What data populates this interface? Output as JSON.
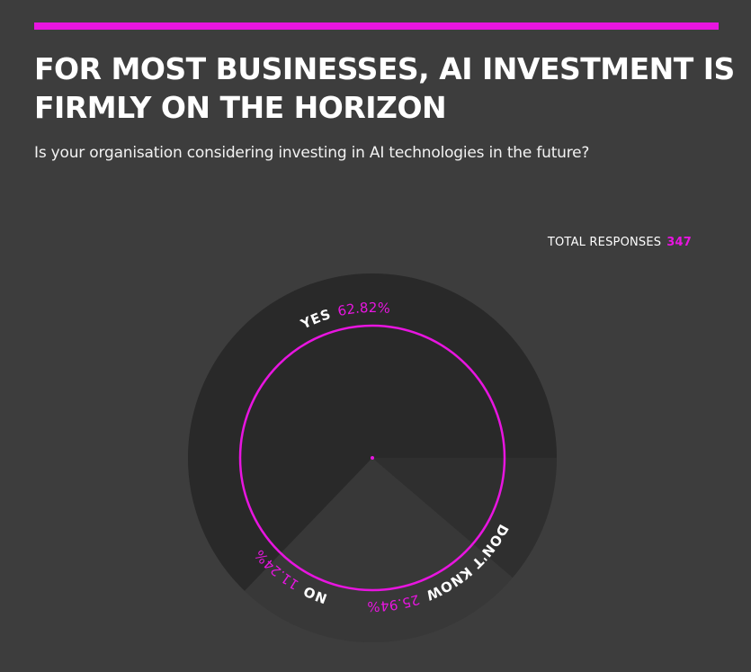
{
  "header": {
    "title": "FOR MOST BUSINESSES, AI INVESTMENT IS FIRMLY ON THE HORIZON",
    "subtitle": "Is your organisation considering investing in AI technologies in the future?"
  },
  "total": {
    "label": "TOTAL RESPONSES",
    "value": "347"
  },
  "colors": {
    "background": "#3d3d3d",
    "accent": "#e815e0",
    "ring": "#353535",
    "slice_yes": "#292929",
    "slice_dont_know": "#383838",
    "slice_no": "#2f2f2f"
  },
  "chart_data": {
    "type": "pie",
    "title": "FOR MOST BUSINESSES, AI INVESTMENT IS FIRMLY ON THE HORIZON",
    "slices": [
      {
        "label": "YES",
        "value": 62.82,
        "display": "62.82%"
      },
      {
        "label": "DON'T KNOW",
        "value": 25.94,
        "display": "25.94%"
      },
      {
        "label": "NO",
        "value": 11.24,
        "display": "11.24%"
      }
    ],
    "start_direction": "east",
    "order": "counter-clockwise",
    "legend": "none"
  }
}
